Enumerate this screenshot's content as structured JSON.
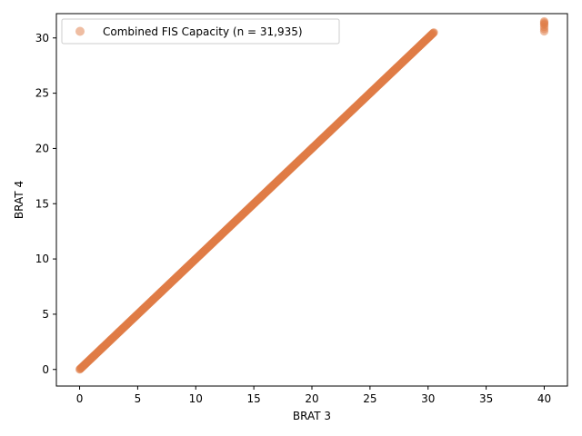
{
  "chart_data": {
    "type": "scatter",
    "title": "",
    "xlabel": "BRAT 3",
    "ylabel": "BRAT 4",
    "xlim": [
      -2,
      42
    ],
    "ylim": [
      -1.5,
      32.2
    ],
    "xticks": [
      0,
      5,
      10,
      15,
      20,
      25,
      30,
      35,
      40
    ],
    "xtick_labels": [
      "0",
      "5",
      "10",
      "15",
      "20",
      "25",
      "30",
      "35",
      "40"
    ],
    "yticks": [
      0,
      5,
      10,
      15,
      20,
      25,
      30
    ],
    "ytick_labels": [
      "0",
      "5",
      "10",
      "15",
      "20",
      "25",
      "30"
    ],
    "grid": false,
    "legend_position": "top-left",
    "series": [
      {
        "name": "Combined FIS Capacity (n = 31,935)",
        "color": "#e07b45",
        "alpha": 0.5,
        "marker": "circle",
        "diagonal_x_range": [
          0,
          30.5
        ],
        "diagonal_y_equals_x": true,
        "cluster_points": [
          {
            "x": 40,
            "y": 30.6
          },
          {
            "x": 40,
            "y": 30.8
          },
          {
            "x": 40,
            "y": 31.0
          },
          {
            "x": 40,
            "y": 31.2
          },
          {
            "x": 40,
            "y": 31.3
          },
          {
            "x": 40,
            "y": 31.4
          },
          {
            "x": 40,
            "y": 31.5
          }
        ]
      }
    ]
  }
}
